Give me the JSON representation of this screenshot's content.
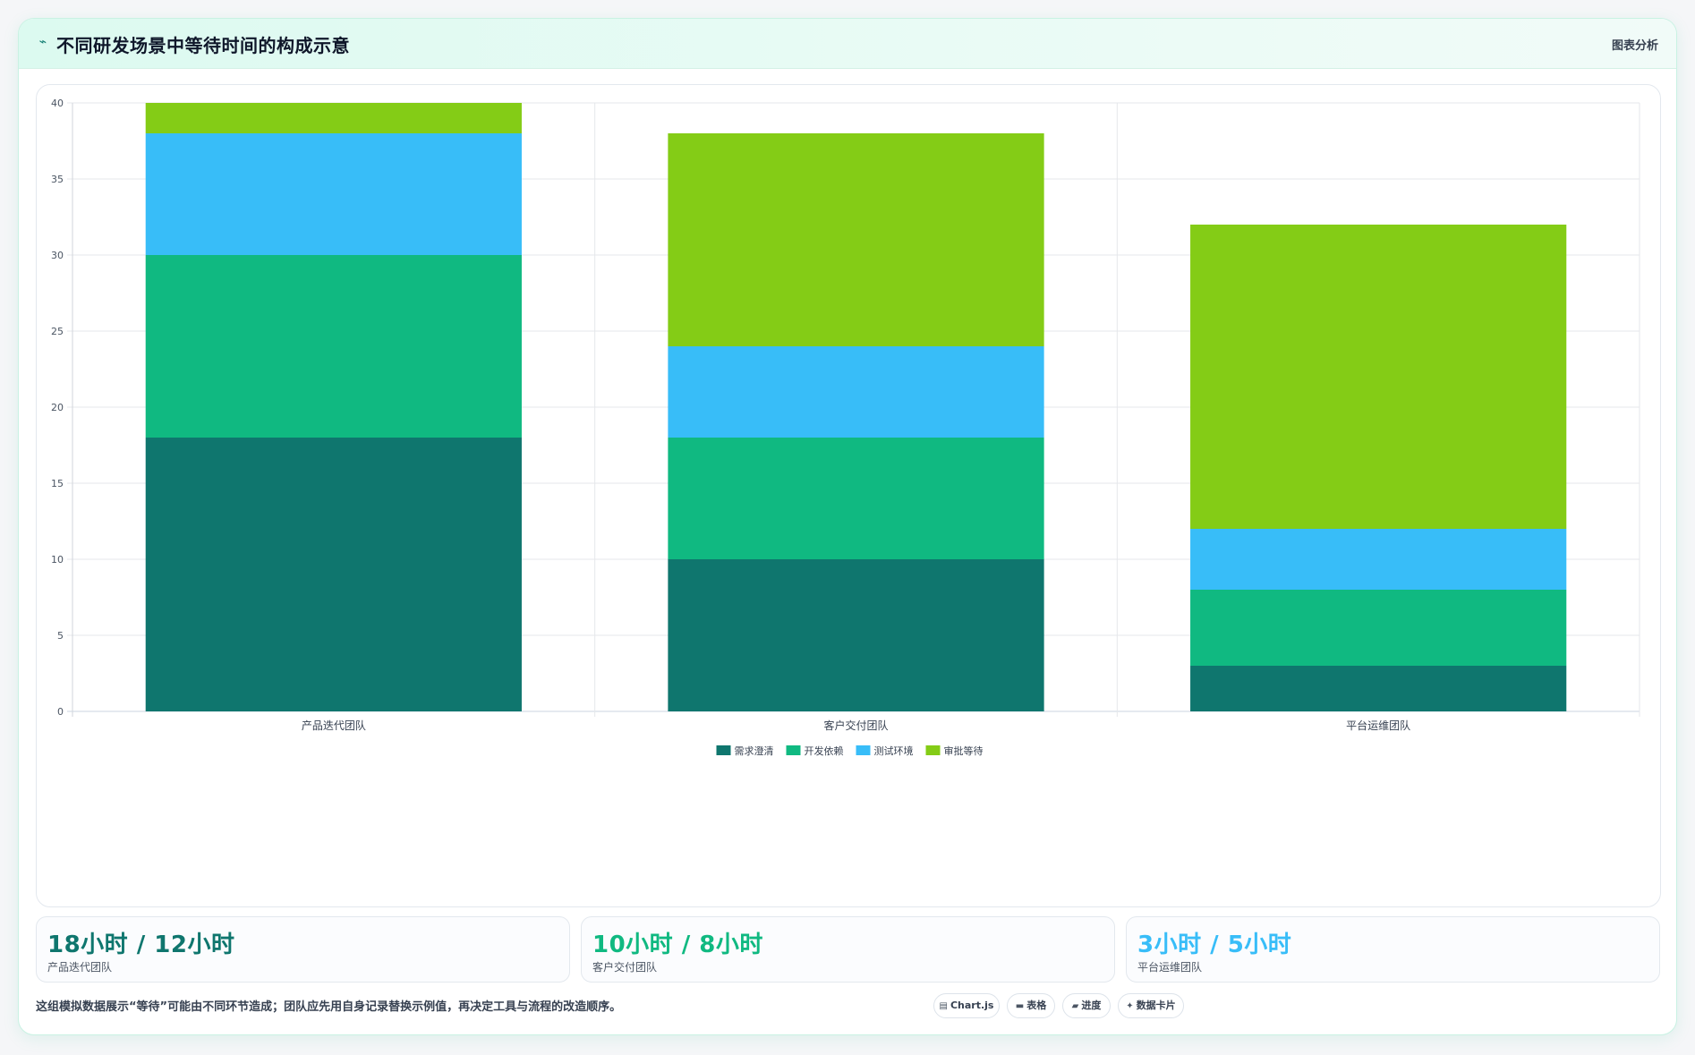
{
  "header": {
    "title": "不同研发场景中等待时间的构成示意",
    "icon": "trend-line-icon",
    "action_label": "图表分析"
  },
  "chart_data": {
    "type": "bar",
    "stacked": true,
    "categories": [
      "产品迭代团队",
      "客户交付团队",
      "平台运维团队"
    ],
    "series": [
      {
        "name": "需求澄清",
        "color": "#0f766e",
        "values": [
          18,
          10,
          3
        ]
      },
      {
        "name": "开发依赖",
        "color": "#10b981",
        "values": [
          12,
          8,
          5
        ]
      },
      {
        "name": "测试环境",
        "color": "#38bdf8",
        "values": [
          8,
          6,
          4
        ]
      },
      {
        "name": "审批等待",
        "color": "#84cc16",
        "values": [
          2,
          14,
          20
        ]
      }
    ],
    "ylim": [
      0,
      40
    ],
    "yticks": [
      0,
      5,
      10,
      15,
      20,
      25,
      30,
      35,
      40
    ],
    "grid": true,
    "legend": "bottom"
  },
  "stats": [
    {
      "value": "18小时 / 12小时",
      "label": "产品迭代团队",
      "color": "#0f766e"
    },
    {
      "value": "10小时 / 8小时",
      "label": "客户交付团队",
      "color": "#10b981"
    },
    {
      "value": "3小时 / 5小时",
      "label": "平台运维团队",
      "color": "#38bdf8"
    }
  ],
  "footer": {
    "note": "这组模拟数据展示“等待”可能由不同环节造成；团队应先用自身记录替换示例值，再决定工具与流程的改造顺序。",
    "tags": [
      {
        "icon": "chart-icon",
        "glyph": "▤",
        "label": "Chart.js"
      },
      {
        "icon": "table-icon",
        "glyph": "▬",
        "label": "表格"
      },
      {
        "icon": "progress-icon",
        "glyph": "▰",
        "label": "进度"
      },
      {
        "icon": "card-icon",
        "glyph": "✦",
        "label": "数据卡片"
      }
    ]
  }
}
